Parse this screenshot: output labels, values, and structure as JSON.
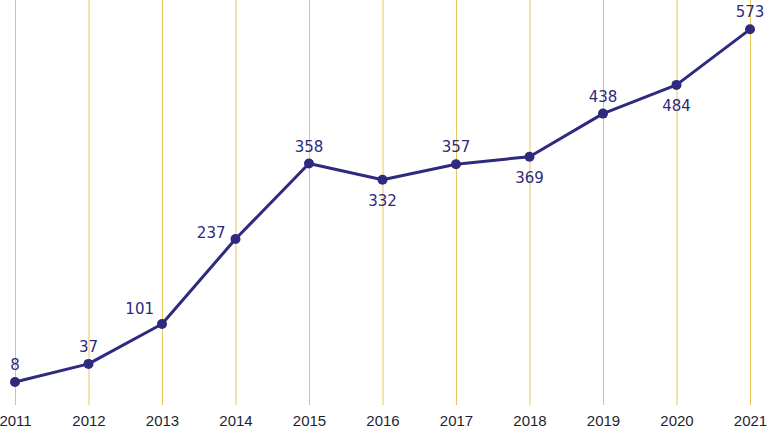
{
  "chart_data": {
    "type": "line",
    "categories": [
      "2011",
      "2012",
      "2013",
      "2014",
      "2015",
      "2016",
      "2017",
      "2018",
      "2019",
      "2020",
      "2021"
    ],
    "values": [
      8,
      37,
      101,
      237,
      358,
      332,
      357,
      369,
      438,
      484,
      573
    ],
    "color": "#2e2a7e",
    "marker": "circle",
    "line_style": "solid",
    "data_labels": true,
    "grid": true,
    "tick_labels": "x",
    "ylim": [
      0,
      620
    ],
    "yticks": []
  }
}
